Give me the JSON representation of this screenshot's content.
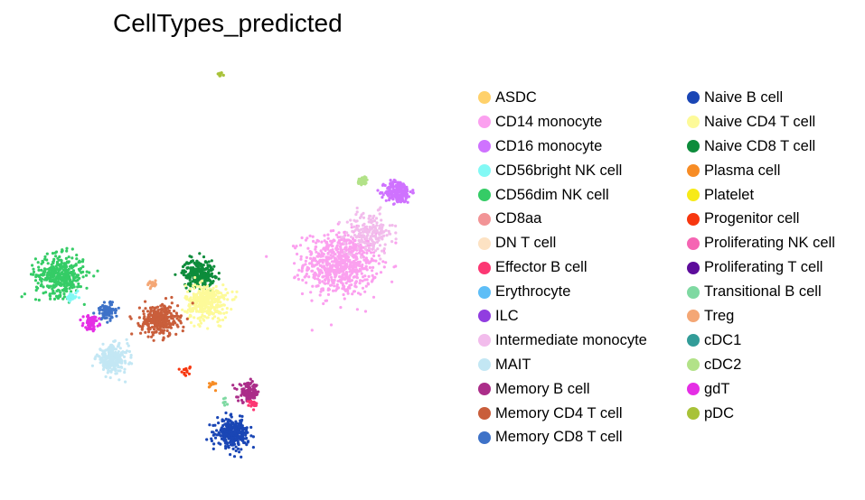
{
  "chart_data": {
    "type": "scatter",
    "title": "CellTypes_predicted",
    "xlabel": "",
    "ylabel": "",
    "grid": false,
    "legend_position": "right",
    "legend_columns": [
      [
        {
          "name": "ASDC",
          "color": "#ffd16b"
        },
        {
          "name": "CD14 monocyte",
          "color": "#fba0ef"
        },
        {
          "name": "CD16 monocyte",
          "color": "#cf72ff"
        },
        {
          "name": "CD56bright NK cell",
          "color": "#83f9f5"
        },
        {
          "name": "CD56dim NK cell",
          "color": "#35cc66"
        },
        {
          "name": "CD8aa",
          "color": "#f29496"
        },
        {
          "name": "DN T cell",
          "color": "#fde2c3"
        },
        {
          "name": "Effector B cell",
          "color": "#fc3773"
        },
        {
          "name": "Erythrocyte",
          "color": "#5ebef7"
        },
        {
          "name": "ILC",
          "color": "#913de0"
        },
        {
          "name": "Intermediate monocyte",
          "color": "#f2bcec"
        },
        {
          "name": "MAIT",
          "color": "#c3e7f4"
        },
        {
          "name": "Memory B cell",
          "color": "#ab2d89"
        },
        {
          "name": "Memory CD4 T cell",
          "color": "#c95e3b"
        },
        {
          "name": "Memory CD8 T cell",
          "color": "#3e72c8"
        }
      ],
      [
        {
          "name": "Naive B cell",
          "color": "#1a46b5"
        },
        {
          "name": "Naive CD4 T cell",
          "color": "#fdfa99"
        },
        {
          "name": "Naive CD8 T cell",
          "color": "#0d8c3b"
        },
        {
          "name": "Plasma cell",
          "color": "#f78c25"
        },
        {
          "name": "Platelet",
          "color": "#f7ea18"
        },
        {
          "name": "Progenitor cell",
          "color": "#f7370f"
        },
        {
          "name": "Proliferating NK cell",
          "color": "#f565b3"
        },
        {
          "name": "Proliferating T cell",
          "color": "#5d0c9b"
        },
        {
          "name": "Transitional B cell",
          "color": "#7fd9a2"
        },
        {
          "name": "Treg",
          "color": "#f4a775"
        },
        {
          "name": "cDC1",
          "color": "#329c98"
        },
        {
          "name": "cDC2",
          "color": "#b2e288"
        },
        {
          "name": "gdT",
          "color": "#e52ee5"
        },
        {
          "name": "pDC",
          "color": "#a8c238"
        }
      ]
    ],
    "clusters": [
      {
        "name": "pDC",
        "x": 2.5,
        "y": 13.5,
        "spread": 0.05,
        "n": 14
      },
      {
        "name": "CD14 monocyte",
        "x": 7.1,
        "y": 5.1,
        "spread": 0.7,
        "n": 700
      },
      {
        "name": "Intermediate monocyte",
        "x": 8.2,
        "y": 6.5,
        "spread": 0.45,
        "n": 180
      },
      {
        "name": "CD16 monocyte",
        "x": 9.3,
        "y": 8.3,
        "spread": 0.25,
        "n": 220
      },
      {
        "name": "cDC2",
        "x": 7.95,
        "y": 8.8,
        "spread": 0.1,
        "n": 40
      },
      {
        "name": "CD56dim NK cell",
        "x": -3.6,
        "y": 4.6,
        "spread": 0.45,
        "n": 400
      },
      {
        "name": "CD56bright NK cell",
        "x": -3.1,
        "y": 3.6,
        "spread": 0.12,
        "n": 25
      },
      {
        "name": "Naive CD8 T cell",
        "x": 1.7,
        "y": 4.7,
        "spread": 0.3,
        "n": 260
      },
      {
        "name": "Naive CD4 T cell",
        "x": 2.0,
        "y": 3.4,
        "spread": 0.4,
        "n": 350
      },
      {
        "name": "Memory CD4 T cell",
        "x": 0.2,
        "y": 2.6,
        "spread": 0.35,
        "n": 300
      },
      {
        "name": "Memory CD8 T cell",
        "x": -1.8,
        "y": 3.0,
        "spread": 0.2,
        "n": 90
      },
      {
        "name": "gdT",
        "x": -2.4,
        "y": 2.5,
        "spread": 0.15,
        "n": 60
      },
      {
        "name": "MAIT",
        "x": -1.6,
        "y": 0.9,
        "spread": 0.3,
        "n": 260
      },
      {
        "name": "Treg",
        "x": -0.1,
        "y": 4.2,
        "spread": 0.1,
        "n": 20
      },
      {
        "name": "Memory B cell",
        "x": 3.6,
        "y": -0.6,
        "spread": 0.2,
        "n": 110
      },
      {
        "name": "Effector B cell",
        "x": 3.75,
        "y": -1.1,
        "spread": 0.1,
        "n": 20
      },
      {
        "name": "Naive B cell",
        "x": 3.0,
        "y": -2.4,
        "spread": 0.3,
        "n": 330
      },
      {
        "name": "Progenitor cell",
        "x": 1.2,
        "y": 0.4,
        "spread": 0.1,
        "n": 15
      },
      {
        "name": "Plasma cell",
        "x": 2.2,
        "y": -0.3,
        "spread": 0.1,
        "n": 10
      },
      {
        "name": "Transitional B cell",
        "x": 2.7,
        "y": -1.0,
        "spread": 0.08,
        "n": 8
      }
    ],
    "xlim": [
      -4.5,
      11
    ],
    "ylim": [
      -4,
      14
    ]
  }
}
